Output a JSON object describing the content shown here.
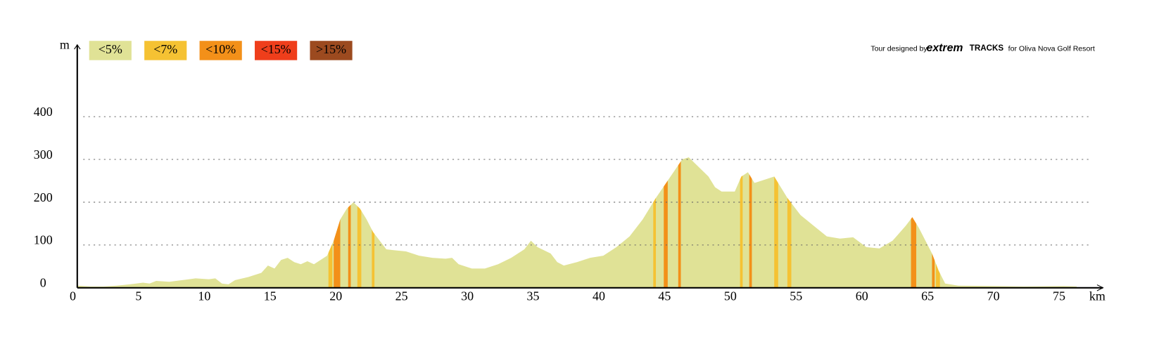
{
  "chart_data": {
    "type": "elevation",
    "y_label": "m",
    "x_label": "km",
    "credit": [
      "Tour designed by",
      "extrem",
      "TRACKS",
      "for Oliva Nova Golf Resort"
    ],
    "xlim": [
      0,
      78
    ],
    "ylim": [
      0,
      568
    ],
    "xticks": [
      0,
      5,
      10,
      15,
      20,
      25,
      30,
      35,
      40,
      45,
      50,
      55,
      60,
      65,
      70,
      75
    ],
    "yticks": [
      0,
      100,
      200,
      300,
      400
    ],
    "grid": true,
    "x": [
      0,
      1,
      2,
      3,
      4,
      5,
      5.5,
      6,
      7,
      8,
      9,
      10,
      10.5,
      11,
      11.5,
      12,
      13,
      14,
      14.5,
      15,
      15.5,
      16,
      16.5,
      17,
      17.5,
      18,
      19,
      19.5,
      20,
      20.5,
      21,
      21.5,
      22,
      22.5,
      23,
      23.5,
      24,
      25,
      26,
      27,
      28,
      28.5,
      29,
      30,
      31,
      32,
      33,
      34,
      34.5,
      35,
      36,
      36.5,
      37,
      38,
      39,
      40,
      41,
      42,
      43,
      44,
      45,
      46,
      46.5,
      47,
      48,
      48.5,
      49,
      50,
      50.5,
      51,
      51.5,
      52,
      53,
      54,
      55,
      56,
      57,
      58,
      59,
      60,
      61,
      62,
      63,
      63.5,
      64,
      64.5,
      65,
      65.5,
      66,
      67,
      70,
      72,
      75,
      76
    ],
    "series": [
      {
        "name": "<5%",
        "color": "#e0e296",
        "values": [
          5,
          3,
          3,
          5,
          8,
          12,
          10,
          16,
          14,
          18,
          22,
          20,
          22,
          10,
          8,
          18,
          25,
          35,
          52,
          45,
          65,
          70,
          60,
          55,
          62,
          55,
          75,
          110,
          160,
          185,
          200,
          185,
          160,
          130,
          110,
          90,
          88,
          85,
          75,
          70,
          68,
          70,
          55,
          45,
          45,
          55,
          70,
          90,
          110,
          95,
          80,
          60,
          52,
          60,
          70,
          75,
          95,
          120,
          160,
          210,
          255,
          300,
          305,
          290,
          260,
          235,
          225,
          225,
          260,
          270,
          245,
          250,
          260,
          210,
          170,
          145,
          120,
          115,
          118,
          95,
          92,
          110,
          145,
          165,
          140,
          110,
          80,
          40,
          10,
          5,
          4,
          3,
          4,
          3
        ]
      }
    ],
    "legend": [
      {
        "label": "<5%",
        "color": "#e0e296",
        "sections": []
      },
      {
        "label": "<7%",
        "color": "#f5c233",
        "sections": [
          [
            19.1,
            19.4
          ],
          [
            21.3,
            21.6
          ],
          [
            22.4,
            22.6
          ],
          [
            43.8,
            44.0
          ],
          [
            50.4,
            50.6
          ],
          [
            53.0,
            53.3
          ],
          [
            54.0,
            54.3
          ],
          [
            65.3,
            65.6
          ]
        ]
      },
      {
        "label": "<10%",
        "color": "#f39019",
        "sections": [
          [
            19.5,
            20.0
          ],
          [
            20.6,
            20.8
          ],
          [
            44.6,
            44.9
          ],
          [
            45.7,
            45.9
          ],
          [
            51.1,
            51.3
          ],
          [
            63.4,
            63.8
          ],
          [
            65.0,
            65.2
          ]
        ]
      },
      {
        "label": "<15%",
        "color": "#ef3e1b",
        "sections": []
      },
      {
        "label": ">15%",
        "color": "#9c4a1f",
        "sections": []
      }
    ]
  }
}
